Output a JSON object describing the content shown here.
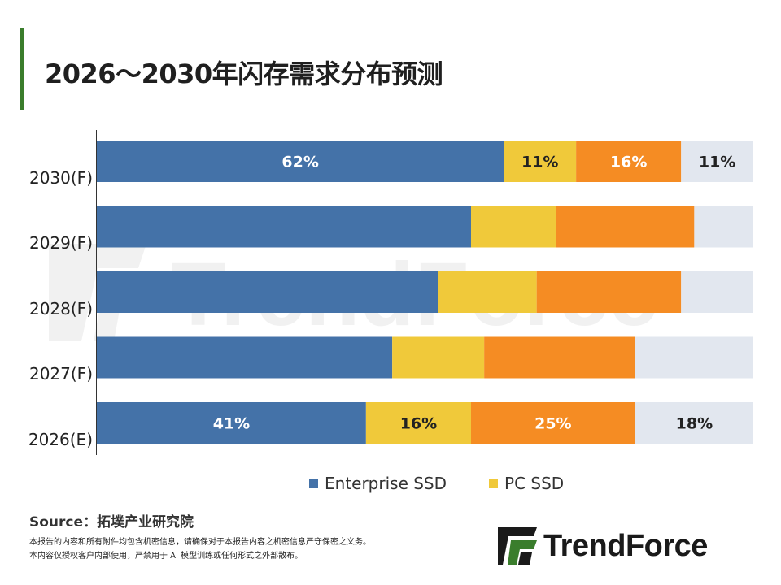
{
  "title": "2026～2030年闪存需求分布预测",
  "colors": {
    "accent": "#3a7d2c",
    "enterprise_ssd": "#4472a8",
    "pc_ssd": "#f0c93a",
    "series3": "#f58c23",
    "series4": "#e2e7ef",
    "dark_label": "#222222"
  },
  "chart_data": {
    "type": "bar",
    "orientation": "horizontal",
    "stacked": true,
    "normalized_to": 100,
    "categories": [
      "2030(F)",
      "2029(F)",
      "2028(F)",
      "2027(F)",
      "2026(E)"
    ],
    "series": [
      {
        "name": "Enterprise SSD",
        "values": [
          62,
          57,
          52,
          45,
          41
        ]
      },
      {
        "name": "PC SSD",
        "values": [
          11,
          13,
          15,
          14,
          16
        ]
      },
      {
        "values": [
          16,
          21,
          22,
          23,
          25
        ]
      },
      {
        "values": [
          11,
          9,
          11,
          18,
          18
        ]
      }
    ],
    "labeled_categories": [
      "2030(F)",
      "2026(E)"
    ],
    "legend": [
      "Enterprise SSD",
      "PC SSD"
    ],
    "legend_position": "bottom"
  },
  "source": "Source：拓墣产业研究院",
  "notes": [
    "本报告的内容和所有附件均包含机密信息，请确保对于本报告内容之机密信息严守保密之义务。",
    "本内容仅授权客户内部使用，严禁用于 AI 模型训练或任何形式之外部散布。"
  ],
  "logo": {
    "text": "TrendForce",
    "mark": "trendforce-logo-mark"
  },
  "watermark_text": "TrendForce"
}
